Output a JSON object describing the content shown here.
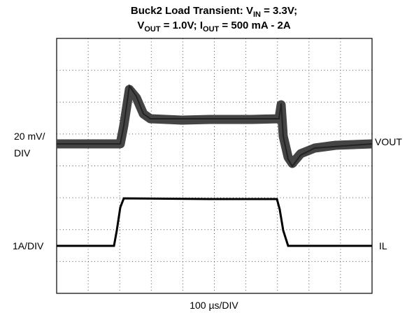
{
  "title": {
    "line1": [
      "Buck2 Load Transient: V",
      "IN",
      " = 3.3V;"
    ],
    "line2": [
      "V",
      "OUT",
      " = 1.0V; I",
      "OUT",
      " = 500 mA - 2A"
    ]
  },
  "labels": {
    "vout_scale": [
      "20 mV/",
      "DIV"
    ],
    "vout": "VOUT",
    "il_scale": "1A/DIV",
    "il": "IL",
    "time_scale": "100 µs/DIV"
  }
}
